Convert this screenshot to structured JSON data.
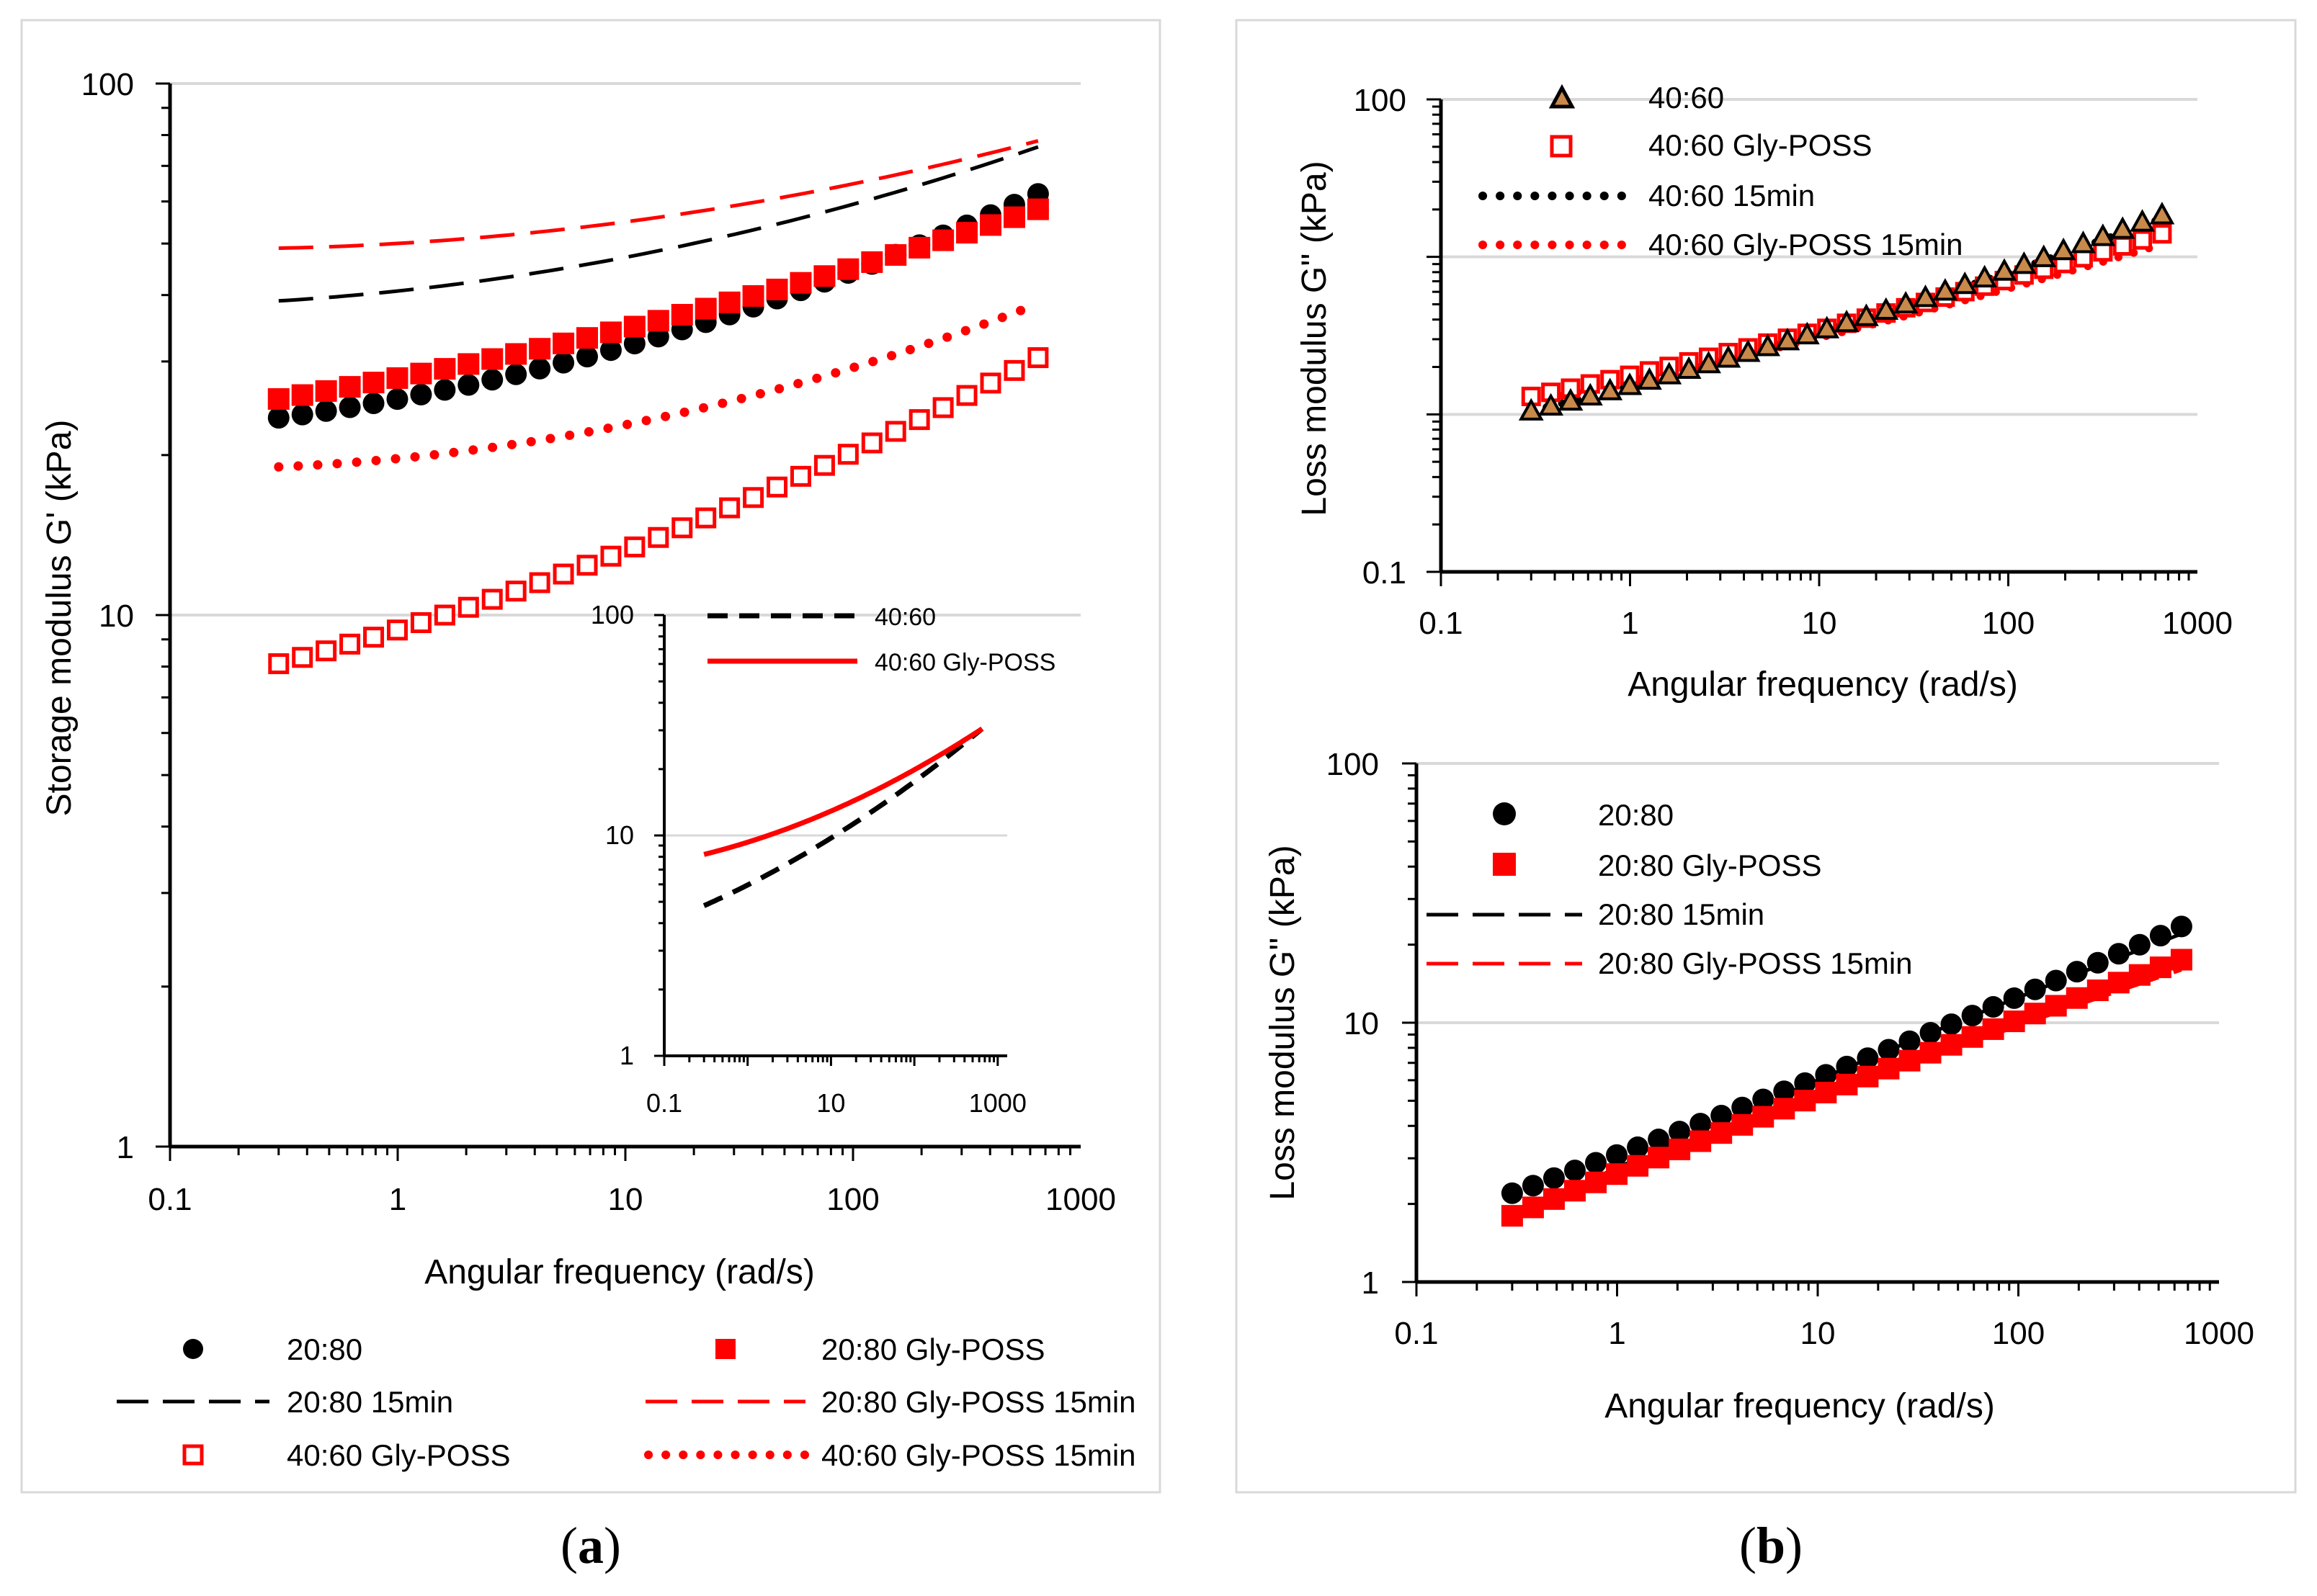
{
  "chart_data": [
    {
      "id": "a",
      "type": "scatter",
      "panel_label": "(a)",
      "panel_letter": "a",
      "xlabel": "Angular frequency (rad/s)",
      "ylabel": "Storage modulus G'  (kPa)",
      "xscale": "log",
      "yscale": "log",
      "xlim": [
        0.1,
        1000
      ],
      "ylim": [
        1,
        100
      ],
      "xticks": [
        "0.1",
        "1",
        "10",
        "100",
        "1000"
      ],
      "yticks": [
        "1",
        "10",
        "100"
      ],
      "legend_position": "bottom",
      "series": [
        {
          "name": "20:80",
          "style": "filled-circle",
          "color": "#000000",
          "x": [
            0.3,
            650
          ],
          "y": [
            23.5,
            62
          ],
          "curve": 0.55
        },
        {
          "name": "20:80 Gly-POSS",
          "style": "filled-square",
          "color": "#ff0000",
          "x": [
            0.3,
            650
          ],
          "y": [
            25.5,
            58
          ],
          "curve": 0.35
        },
        {
          "name": "20:80 15min",
          "style": "dash",
          "color": "#000000",
          "x": [
            0.3,
            650
          ],
          "y": [
            39,
            76
          ],
          "curve": 0.7
        },
        {
          "name": "20:80 Gly-POSS 15min",
          "style": "dash",
          "color": "#ff0000",
          "x": [
            0.3,
            650
          ],
          "y": [
            49,
            78
          ],
          "curve": 0.85
        },
        {
          "name": "40:60 Gly-POSS",
          "style": "open-square",
          "color": "#ff0000",
          "x": [
            0.3,
            650
          ],
          "y": [
            8.1,
            30.5
          ],
          "curve": 0.35
        },
        {
          "name": "40:60 Gly-POSS 15min",
          "style": "dotted",
          "color": "#ff0000",
          "x": [
            0.3,
            650
          ],
          "y": [
            19,
            38.5
          ],
          "curve": 0.8
        }
      ],
      "inset": {
        "xscale": "log",
        "yscale": "log",
        "xlim": [
          0.1,
          1300
        ],
        "ylim": [
          1,
          100
        ],
        "xticks": [
          "0.1",
          "10",
          "1000"
        ],
        "yticks": [
          "1",
          "10",
          "100"
        ],
        "series": [
          {
            "name": "40:60",
            "style": "dash",
            "color": "#000000",
            "x": [
              0.3,
              650
            ],
            "y": [
              4.8,
              30.5
            ],
            "curve": 0.3
          },
          {
            "name": "40:60 Gly-POSS",
            "style": "solid",
            "color": "#ff0000",
            "x": [
              0.3,
              650
            ],
            "y": [
              8.2,
              30.5
            ],
            "curve": 0.45
          }
        ]
      }
    },
    {
      "id": "b_top",
      "type": "scatter",
      "panel_label": "(b)",
      "panel_letter": "b",
      "xlabel": "Angular frequency (rad/s)",
      "ylabel": "Loss modulus G''  (kPa)",
      "xscale": "log",
      "yscale": "log",
      "xlim": [
        0.1,
        1000
      ],
      "ylim": [
        0.1,
        100
      ],
      "xticks": [
        "0.1",
        "1",
        "10",
        "100",
        "1000"
      ],
      "yticks": [
        "0.1",
        "100"
      ],
      "legend_position": "top-left",
      "series": [
        {
          "name": "40:60",
          "style": "triangle",
          "color": "#c8894a",
          "x": [
            0.3,
            650
          ],
          "y": [
            1.05,
            18.5
          ],
          "curve": 0.2
        },
        {
          "name": "40:60 Gly-POSS",
          "style": "open-square",
          "color": "#ff0000",
          "x": [
            0.3,
            650
          ],
          "y": [
            1.3,
            14
          ],
          "curve": 0.2
        },
        {
          "name": "40:60 15min",
          "style": "dotted",
          "color": "#000000",
          "x": [
            0.3,
            650
          ],
          "y": [
            1.05,
            17.5
          ],
          "curve": 0.2
        },
        {
          "name": "40:60 Gly-POSS 15min",
          "style": "dotted",
          "color": "#ff0000",
          "x": [
            0.3,
            650
          ],
          "y": [
            1.2,
            12
          ],
          "curve": 0.2
        }
      ]
    },
    {
      "id": "b_bottom",
      "type": "scatter",
      "xlabel": "Angular frequency (rad/s)",
      "ylabel": "Loss modulus G''  (kPa)",
      "xscale": "log",
      "yscale": "log",
      "xlim": [
        0.1,
        1000
      ],
      "ylim": [
        1,
        100
      ],
      "xticks": [
        "0.1",
        "1",
        "10",
        "100",
        "1000"
      ],
      "yticks": [
        "1",
        "10",
        "100"
      ],
      "legend_position": "top-left",
      "series": [
        {
          "name": "20:80",
          "style": "filled-circle",
          "color": "#000000",
          "x": [
            0.3,
            650
          ],
          "y": [
            2.2,
            23.5
          ],
          "curve": 0.1
        },
        {
          "name": "20:80 Gly-POSS",
          "style": "filled-square",
          "color": "#ff0000",
          "x": [
            0.3,
            650
          ],
          "y": [
            1.8,
            17.5
          ],
          "curve": -0.05
        },
        {
          "name": "20:80 15min",
          "style": "dash",
          "color": "#000000",
          "x": [
            0.3,
            650
          ],
          "y": [
            1.8,
            22
          ],
          "curve": -0.1
        },
        {
          "name": "20:80 Gly-POSS 15min",
          "style": "dash",
          "color": "#ff0000",
          "x": [
            0.3,
            650
          ],
          "y": [
            1.75,
            16
          ],
          "curve": -0.1
        }
      ]
    }
  ]
}
